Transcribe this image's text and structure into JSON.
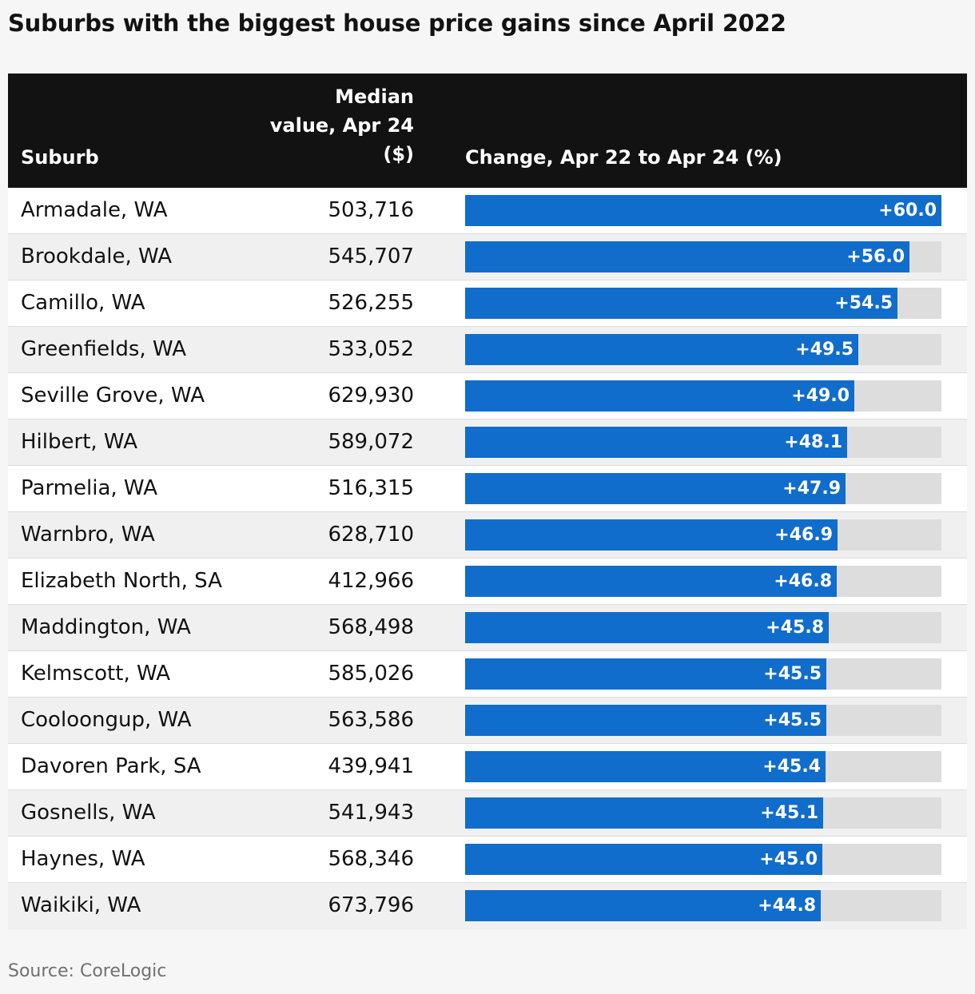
{
  "title": "Suburbs with the biggest house price gains since April 2022",
  "header": {
    "suburb": "Suburb",
    "median_line1": "Median",
    "median_line2": "value, Apr 24",
    "median_line3": "($)",
    "change": "Change, Apr 22 to Apr 24 (%)"
  },
  "source": "Source: CoreLogic",
  "colors": {
    "bar": "#116dcc",
    "track": "#dddddd",
    "header_bg": "#121212"
  },
  "chart_data": {
    "type": "table",
    "title": "Suburbs with the biggest house price gains since April 2022",
    "columns": [
      "Suburb",
      "Median value, Apr 24 ($)",
      "Change, Apr 22 to Apr 24 (%)"
    ],
    "bar_max": 60,
    "rows": [
      {
        "suburb": "Armadale, WA",
        "median": "503,716",
        "change": 60.0,
        "change_label": "+60.0"
      },
      {
        "suburb": "Brookdale, WA",
        "median": "545,707",
        "change": 56.0,
        "change_label": "+56.0"
      },
      {
        "suburb": "Camillo, WA",
        "median": "526,255",
        "change": 54.5,
        "change_label": "+54.5"
      },
      {
        "suburb": "Greenfields, WA",
        "median": "533,052",
        "change": 49.5,
        "change_label": "+49.5"
      },
      {
        "suburb": "Seville Grove, WA",
        "median": "629,930",
        "change": 49.0,
        "change_label": "+49.0"
      },
      {
        "suburb": "Hilbert, WA",
        "median": "589,072",
        "change": 48.1,
        "change_label": "+48.1"
      },
      {
        "suburb": "Parmelia, WA",
        "median": "516,315",
        "change": 47.9,
        "change_label": "+47.9"
      },
      {
        "suburb": "Warnbro, WA",
        "median": "628,710",
        "change": 46.9,
        "change_label": "+46.9"
      },
      {
        "suburb": "Elizabeth North, SA",
        "median": "412,966",
        "change": 46.8,
        "change_label": "+46.8"
      },
      {
        "suburb": "Maddington, WA",
        "median": "568,498",
        "change": 45.8,
        "change_label": "+45.8"
      },
      {
        "suburb": "Kelmscott, WA",
        "median": "585,026",
        "change": 45.5,
        "change_label": "+45.5"
      },
      {
        "suburb": "Cooloongup, WA",
        "median": "563,586",
        "change": 45.5,
        "change_label": "+45.5"
      },
      {
        "suburb": "Davoren Park, SA",
        "median": "439,941",
        "change": 45.4,
        "change_label": "+45.4"
      },
      {
        "suburb": "Gosnells, WA",
        "median": "541,943",
        "change": 45.1,
        "change_label": "+45.1"
      },
      {
        "suburb": "Haynes, WA",
        "median": "568,346",
        "change": 45.0,
        "change_label": "+45.0"
      },
      {
        "suburb": "Waikiki, WA",
        "median": "673,796",
        "change": 44.8,
        "change_label": "+44.8"
      }
    ]
  }
}
